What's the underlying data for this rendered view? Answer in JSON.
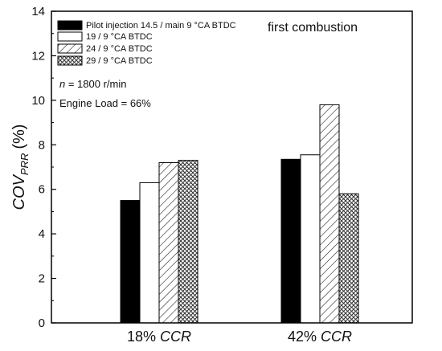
{
  "chart_data": {
    "type": "bar",
    "categories": [
      {
        "value": "18%",
        "unit": "CCR"
      },
      {
        "value": "42%",
        "unit": "CCR"
      }
    ],
    "series": [
      {
        "name": "Pilot injection 14.5 / main 9 °CA BTDC",
        "pattern": "solid",
        "values": [
          5.5,
          7.35
        ]
      },
      {
        "name": "19 /  9 °CA BTDC",
        "pattern": "empty",
        "values": [
          6.3,
          7.55
        ]
      },
      {
        "name": "24 /  9 °CA BTDC",
        "pattern": "hatch",
        "values": [
          7.2,
          9.8
        ]
      },
      {
        "name": "29 /  9 °CA BTDC",
        "pattern": "crosshatch",
        "values": [
          7.3,
          5.8
        ]
      }
    ],
    "ylabel": {
      "main": "COV",
      "sub": "PRR",
      "unit": "(%)"
    },
    "ylim": [
      0,
      14
    ],
    "yticks": [
      0,
      2,
      4,
      6,
      8,
      10,
      12,
      14
    ],
    "title": "first combustion",
    "annotations": {
      "speed": {
        "symbol": "n",
        "text": " = 1800 r/min"
      },
      "load": "Engine Load = 66%"
    },
    "legend_position": "top-left",
    "grid": false
  }
}
